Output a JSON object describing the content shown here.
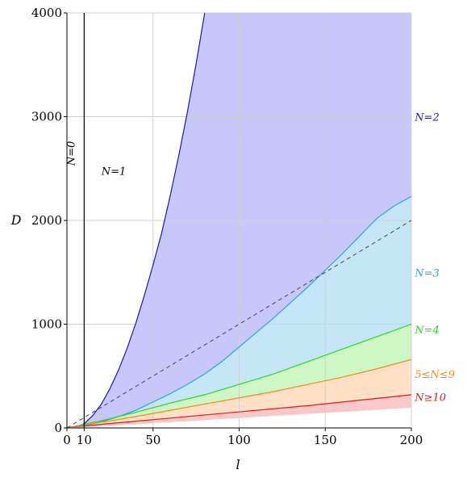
{
  "chart_data": {
    "type": "area",
    "xlabel": "l",
    "ylabel": "D",
    "xlim": [
      0,
      200
    ],
    "ylim": [
      0,
      4000
    ],
    "xticks": [
      {
        "value": 0,
        "label": "0"
      },
      {
        "value": 10,
        "label": "10"
      },
      {
        "value": 50,
        "label": "50"
      },
      {
        "value": 100,
        "label": "100"
      },
      {
        "value": 150,
        "label": "150"
      },
      {
        "value": 200,
        "label": "200"
      }
    ],
    "yticks": [
      {
        "value": 0,
        "label": "0"
      },
      {
        "value": 1000,
        "label": "1000"
      },
      {
        "value": 2000,
        "label": "2000"
      },
      {
        "value": 3000,
        "label": "3000"
      },
      {
        "value": 4000,
        "label": "4000"
      }
    ],
    "grid": true,
    "vertical_line": {
      "x": 10,
      "label": "N=0",
      "color": "#000000"
    },
    "dashed_line": {
      "x": [
        0,
        200
      ],
      "y": [
        0,
        2000
      ],
      "color": "#444444"
    },
    "boundaries": [
      {
        "name": "N=2",
        "color": "#1a1aa8",
        "fill": "#c7c7fb",
        "x": [
          0,
          5,
          10,
          15,
          20,
          25,
          30,
          35,
          40,
          45,
          50,
          55,
          60,
          65,
          70,
          75,
          80
        ],
        "y": [
          0,
          10,
          40,
          120,
          230,
          380,
          560,
          770,
          1010,
          1280,
          1570,
          1880,
          2240,
          2630,
          3050,
          3510,
          4000
        ]
      },
      {
        "name": "N=3",
        "color": "#29a3e0",
        "fill": "#c4e6f6",
        "x": [
          0,
          10,
          20,
          30,
          40,
          50,
          60,
          70,
          80,
          90,
          100,
          110,
          120,
          130,
          140,
          150,
          160,
          170,
          180,
          190,
          200
        ],
        "y": [
          0,
          20,
          60,
          110,
          170,
          250,
          330,
          420,
          520,
          640,
          780,
          920,
          1060,
          1210,
          1360,
          1520,
          1680,
          1850,
          2020,
          2140,
          2230
        ]
      },
      {
        "name": "N=4",
        "color": "#2ed12e",
        "fill": "#cdf8c6",
        "x": [
          0,
          20,
          40,
          60,
          80,
          100,
          120,
          140,
          160,
          180,
          200
        ],
        "y": [
          0,
          70,
          150,
          240,
          320,
          420,
          520,
          640,
          760,
          880,
          1000
        ]
      },
      {
        "name": "5≤N≤9",
        "color": "#f08a1a",
        "fill": "#fde0c6",
        "x": [
          0,
          20,
          40,
          60,
          80,
          100,
          120,
          140,
          160,
          180,
          200
        ],
        "y": [
          0,
          55,
          110,
          170,
          230,
          290,
          350,
          420,
          490,
          570,
          660
        ]
      },
      {
        "name": "N≥10",
        "color": "#e01b1b",
        "fill": "#fac8c8",
        "x": [
          0,
          20,
          40,
          60,
          80,
          100,
          120,
          140,
          160,
          180,
          200
        ],
        "y": [
          0,
          35,
          65,
          95,
          125,
          155,
          185,
          215,
          250,
          285,
          320
        ]
      },
      {
        "name": "",
        "color": "#fac8c8",
        "fill": "#ffffff",
        "x": [
          0,
          20,
          40,
          60,
          80,
          100,
          120,
          140,
          160,
          180,
          200
        ],
        "y": [
          0,
          20,
          40,
          60,
          80,
          100,
          120,
          140,
          160,
          180,
          200
        ]
      }
    ],
    "annotations": [
      {
        "text": "N=1",
        "x": 20,
        "y": 2480,
        "color": "#000000"
      },
      {
        "text": "N=2",
        "x": 202,
        "y": 3000,
        "color": "#1a1aa8"
      },
      {
        "text": "N=3",
        "x": 202,
        "y": 1500,
        "color": "#29a3e0"
      },
      {
        "text": "N=4",
        "x": 202,
        "y": 950,
        "color": "#2ed12e"
      },
      {
        "text": "5≤N≤9",
        "x": 202,
        "y": 520,
        "color": "#f08a1a"
      },
      {
        "text": "N≥10",
        "x": 202,
        "y": 300,
        "color": "#e01b1b"
      }
    ]
  }
}
